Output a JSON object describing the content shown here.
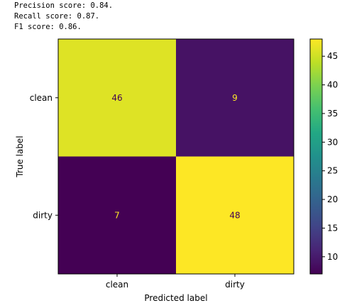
{
  "metrics": {
    "precision": "Precision score: 0.84.",
    "recall": "Recall score: 0.87.",
    "f1": "F1 score: 0.86."
  },
  "chart_data": {
    "type": "heatmap",
    "title": "",
    "xlabel": "Predicted label",
    "ylabel": "True label",
    "x_categories": [
      "clean",
      "dirty"
    ],
    "y_categories": [
      "clean",
      "dirty"
    ],
    "values": [
      [
        46,
        9
      ],
      [
        7,
        48
      ]
    ],
    "colormap": "viridis",
    "colorbar": {
      "range": [
        7,
        48
      ],
      "ticks": [
        10,
        15,
        20,
        25,
        30,
        35,
        40,
        45
      ]
    },
    "text_colors": {
      "on_dark": "#fde725",
      "on_light": "#440154"
    },
    "grid": false,
    "legend": "colorbar-right"
  }
}
